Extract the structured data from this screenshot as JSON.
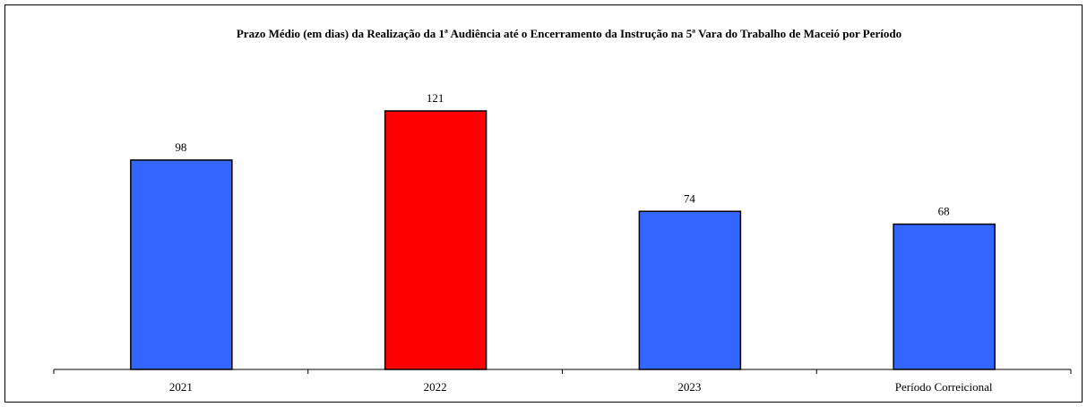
{
  "chart_data": {
    "type": "bar",
    "title": "Prazo Médio (em dias) da Realização da 1ª Audiência até o Encerramento da Instrução na 5ª Vara do Trabalho de Maceió por Período",
    "categories": [
      "2021",
      "2022",
      "2023",
      "Período Correicional"
    ],
    "values": [
      98,
      121,
      74,
      68
    ],
    "colors": [
      "#3366ff",
      "#ff0000",
      "#3366ff",
      "#3366ff"
    ]
  }
}
